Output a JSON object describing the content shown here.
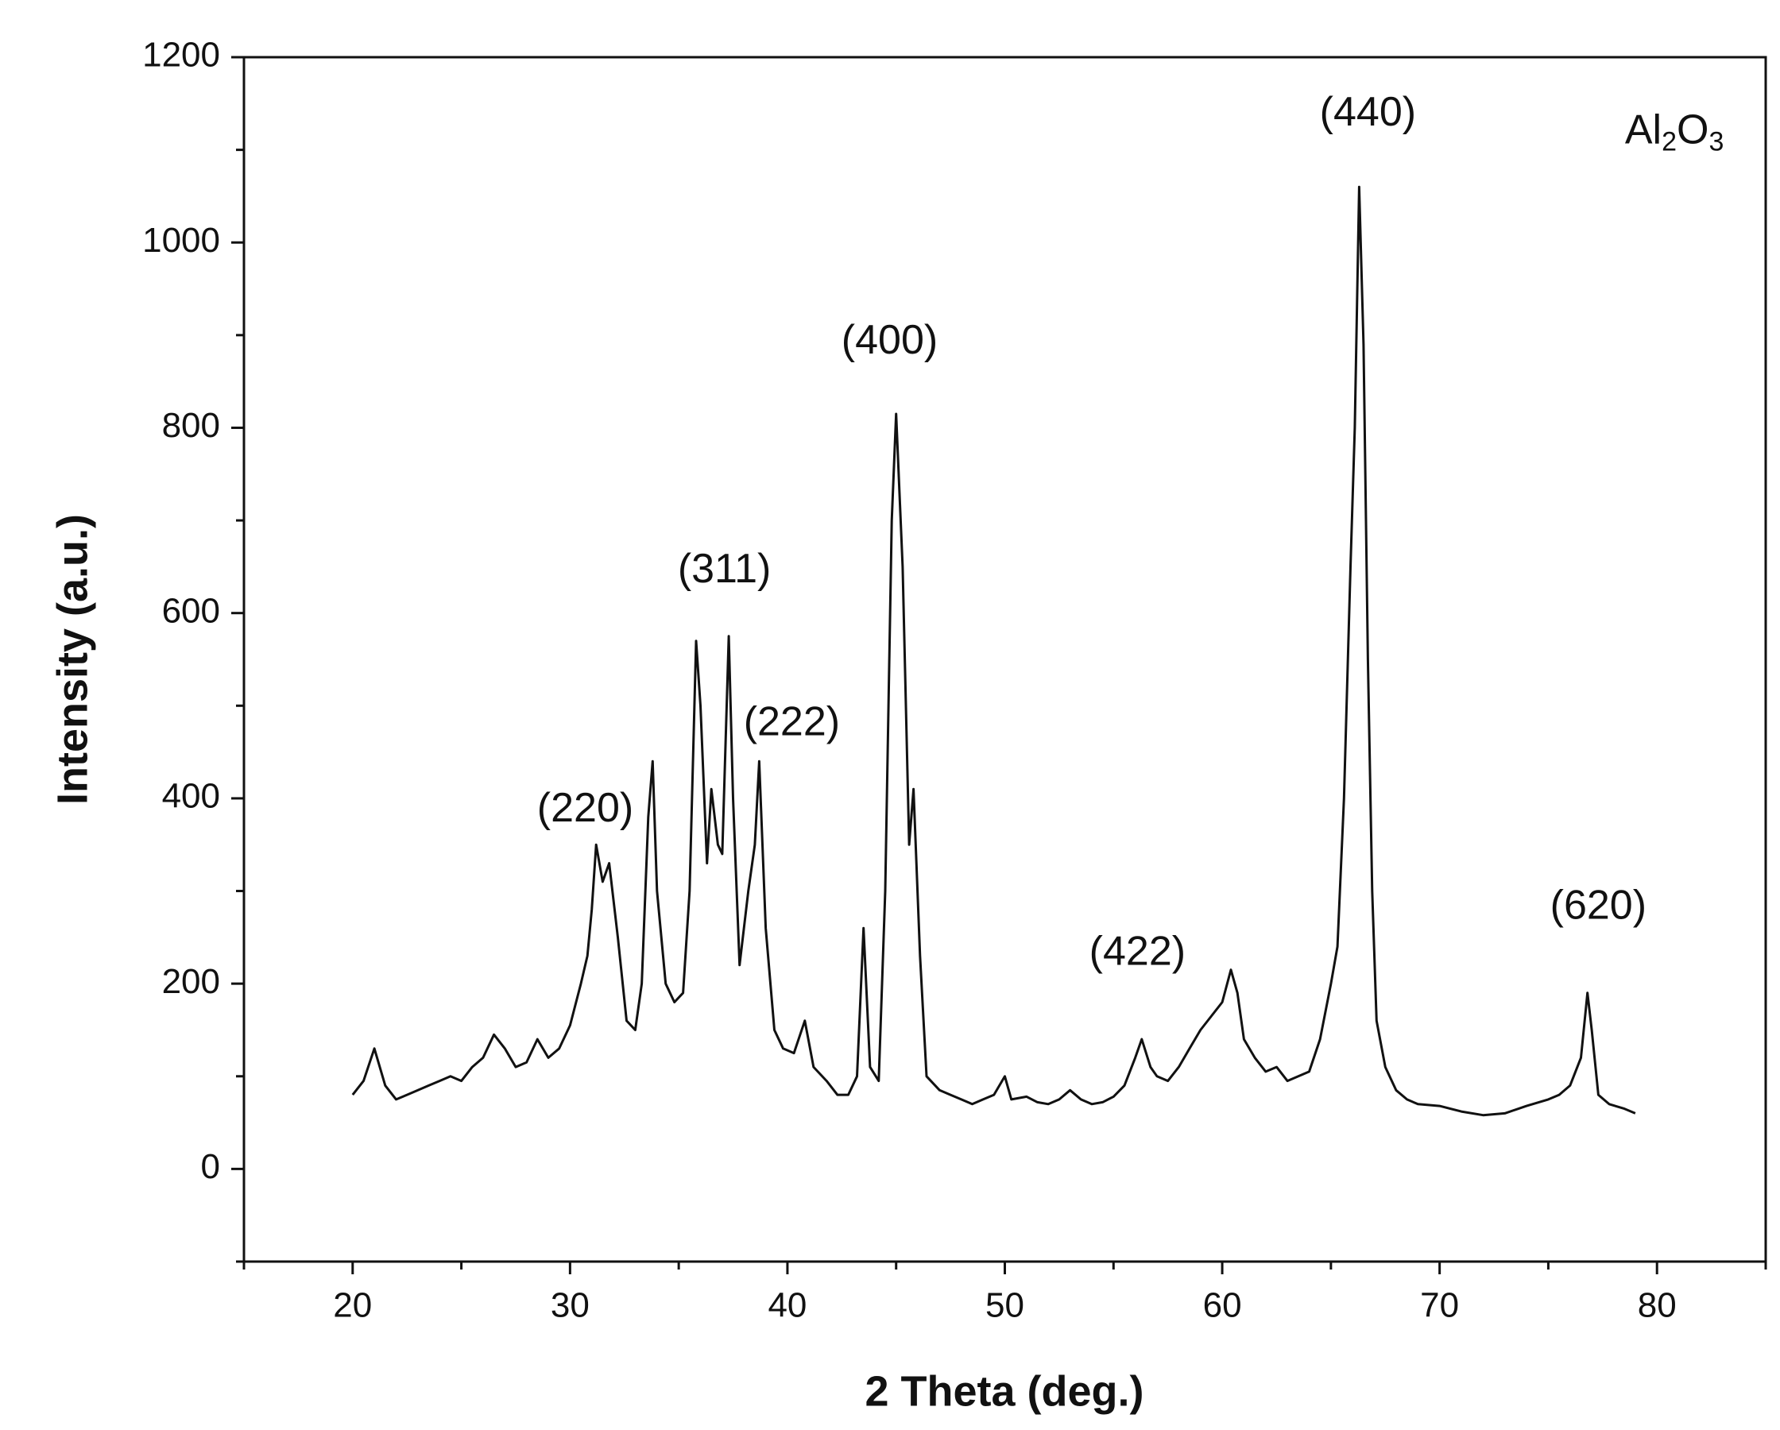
{
  "chart_data": {
    "type": "line",
    "xlabel": "2 Theta (deg.)",
    "ylabel": "Intensity (a.u.)",
    "color": "#111111",
    "x": [
      20,
      20.5,
      21,
      21.5,
      22,
      22.5,
      23,
      23.5,
      24,
      24.5,
      25,
      25.5,
      26,
      26.5,
      27,
      27.5,
      28,
      28.5,
      29,
      29.5,
      30,
      30.5,
      30.8,
      31,
      31.2,
      31.5,
      31.8,
      32.2,
      32.6,
      33,
      33.3,
      33.6,
      33.8,
      34,
      34.4,
      34.8,
      35.2,
      35.5,
      35.8,
      36,
      36.3,
      36.5,
      36.8,
      37,
      37.3,
      37.5,
      37.8,
      38.2,
      38.5,
      38.7,
      39,
      39.4,
      39.8,
      40.3,
      40.8,
      41.2,
      41.8,
      42.3,
      42.8,
      43.2,
      43.5,
      43.8,
      44.2,
      44.5,
      44.8,
      45,
      45.3,
      45.6,
      45.8,
      46.1,
      46.4,
      47,
      47.5,
      48,
      48.5,
      49,
      49.5,
      50,
      50.3,
      51,
      51.5,
      52,
      52.5,
      53,
      53.5,
      54,
      54.5,
      55,
      55.5,
      56,
      56.3,
      56.7,
      57,
      57.5,
      58,
      58.5,
      59,
      59.5,
      60,
      60.4,
      60.7,
      61,
      61.5,
      62,
      62.5,
      63,
      63.5,
      64,
      64.5,
      65,
      65.3,
      65.6,
      65.9,
      66.1,
      66.3,
      66.5,
      66.7,
      66.9,
      67.1,
      67.5,
      68,
      68.5,
      69,
      70,
      71,
      72,
      73,
      74,
      75,
      75.5,
      76,
      76.5,
      76.8,
      77,
      77.3,
      77.8,
      78.5,
      79
    ],
    "values": [
      80,
      95,
      130,
      90,
      75,
      80,
      85,
      90,
      95,
      100,
      95,
      110,
      120,
      145,
      130,
      110,
      115,
      140,
      120,
      130,
      155,
      200,
      230,
      280,
      350,
      310,
      330,
      250,
      160,
      150,
      200,
      380,
      440,
      300,
      200,
      180,
      190,
      300,
      570,
      500,
      330,
      410,
      350,
      340,
      575,
      400,
      220,
      300,
      350,
      440,
      260,
      150,
      130,
      125,
      160,
      110,
      95,
      80,
      80,
      100,
      260,
      110,
      95,
      300,
      700,
      815,
      650,
      350,
      410,
      230,
      100,
      85,
      80,
      75,
      70,
      75,
      80,
      100,
      75,
      78,
      72,
      70,
      75,
      85,
      75,
      70,
      72,
      78,
      90,
      120,
      140,
      110,
      100,
      95,
      110,
      130,
      150,
      165,
      180,
      215,
      190,
      140,
      120,
      105,
      110,
      95,
      100,
      105,
      140,
      200,
      240,
      400,
      650,
      800,
      1060,
      890,
      550,
      300,
      160,
      110,
      85,
      75,
      70,
      68,
      62,
      58,
      60,
      68,
      75,
      80,
      90,
      120,
      190,
      150,
      80,
      70,
      65,
      60
    ],
    "xlim": [
      15,
      85
    ],
    "xticks": [
      20,
      30,
      40,
      50,
      60,
      70,
      80
    ],
    "xticks_minor": [
      15,
      25,
      35,
      45,
      55,
      65,
      75,
      85
    ],
    "ylim": [
      -100,
      1200
    ],
    "yticks": [
      0,
      200,
      400,
      600,
      800,
      1000,
      1200
    ],
    "yticks_minor": [
      -100,
      100,
      300,
      500,
      700,
      900,
      1100
    ],
    "grid": false,
    "annotations": [
      {
        "text": "(220)",
        "x": 30.7,
        "y": 387
      },
      {
        "text": "(311)",
        "x": 37.1,
        "y": 645
      },
      {
        "text": "(222)",
        "x": 40.2,
        "y": 480
      },
      {
        "text": "(400)",
        "x": 44.7,
        "y": 892
      },
      {
        "text": "(422)",
        "x": 56.1,
        "y": 232
      },
      {
        "text": "(440)",
        "x": 66.7,
        "y": 1138
      },
      {
        "text": "(620)",
        "x": 77.3,
        "y": 282
      },
      {
        "text": "Al2O3",
        "x": 80.8,
        "y": 1119
      }
    ]
  }
}
